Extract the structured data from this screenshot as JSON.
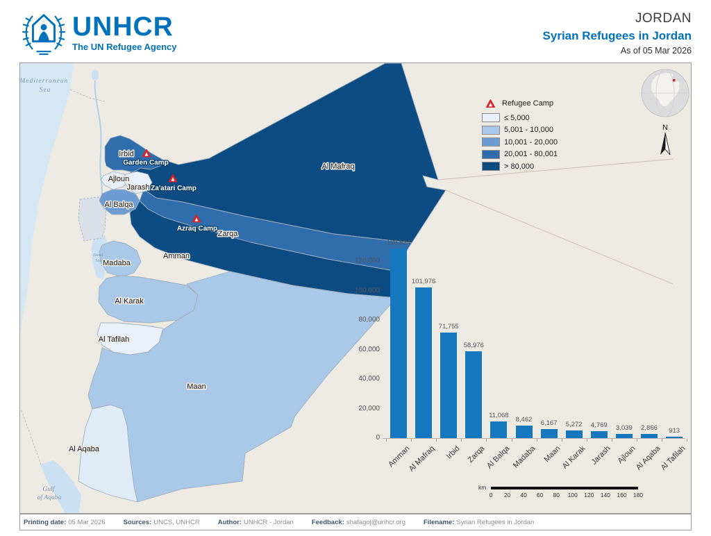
{
  "header": {
    "org": "UNHCR",
    "tagline": "The UN Refugee Agency",
    "country": "JORDAN",
    "title": "Syrian Refugees in Jordan",
    "as_of": "As of 05 Mar 2026",
    "brand_color": "#0072BC"
  },
  "legend": {
    "camp_label": "Refugee Camp",
    "camp_marker_color": "#D8232A",
    "classes": [
      {
        "label": "≤ 5,000",
        "color": "#E9F0FA"
      },
      {
        "label": "5,001 - 10,000",
        "color": "#A9C7E7"
      },
      {
        "label": "10,001 - 20,000",
        "color": "#6C9CD1"
      },
      {
        "label": "20,001 - 80,001",
        "color": "#2F6DAD"
      },
      {
        "label": "> 80,000",
        "color": "#0D4C82"
      }
    ]
  },
  "map": {
    "labels": {
      "irbid": "Irbid",
      "ajloun": "Ajloun",
      "jarash": "Jarash",
      "al_balqa": "Al Balqa",
      "al_mafraq": "Al Mafraq",
      "zarqa": "Zarqa",
      "amman": "Amman",
      "madaba": "Madaba",
      "al_karak": "Al Karak",
      "al_tafilah": "Al Tafilah",
      "maan": "Maan",
      "al_aqaba": "Al Aqaba",
      "med_line1": "Mediterranean",
      "med_line2": "Sea",
      "dead_line1": "Dead",
      "dead_line2": "Sea",
      "gulf_line1": "Gulf",
      "gulf_line2": "of Aqaba"
    },
    "camps": [
      {
        "name": "Garden Camp"
      },
      {
        "name": "Za'atari Camp"
      },
      {
        "name": "Azraq Camp"
      }
    ],
    "compass_label": "N",
    "scalebar": {
      "unit": "km",
      "ticks": [
        "0",
        "20",
        "40",
        "60",
        "80",
        "100",
        "120",
        "140",
        "160",
        "180"
      ]
    }
  },
  "chart_data": {
    "type": "bar",
    "title": "",
    "categories": [
      "Amman",
      "Al Mafraq",
      "Irbid",
      "Zarqa",
      "Al Balqa",
      "Madaba",
      "Maan",
      "Al Karak",
      "Jarash",
      "Ajloun",
      "Al Aqaba",
      "Al Tafilah"
    ],
    "values": [
      128624,
      101976,
      71755,
      58976,
      11068,
      8462,
      6167,
      5272,
      4769,
      3039,
      2866,
      913
    ],
    "value_labels": [
      "128,624",
      "101,976",
      "71,755",
      "58,976",
      "11,068",
      "8,462",
      "6,167",
      "5,272",
      "4,769",
      "3,039",
      "2,866",
      "913"
    ],
    "y_ticks": [
      "0",
      "20,000",
      "40,000",
      "60,000",
      "80,000",
      "100,000",
      "120,000"
    ],
    "y_tick_values": [
      0,
      20000,
      40000,
      60000,
      80000,
      100000,
      120000
    ],
    "ylim": [
      0,
      130000
    ],
    "xlabel": "",
    "ylabel": "",
    "grid": false,
    "legend_position": "none",
    "bar_color": "#1578BE"
  },
  "footer": {
    "printing_date_label": "Printing date:",
    "printing_date": "05 Mar 2026",
    "sources_label": "Sources:",
    "sources": "UNCS, UNHCR",
    "author_label": "Author:",
    "author": "UNHCR - Jordan",
    "feedback_label": "Feedback:",
    "feedback": "shafagoj@unhcr.org",
    "filename_label": "Filename:",
    "filename": "Syrian Refugees in Jordan"
  }
}
